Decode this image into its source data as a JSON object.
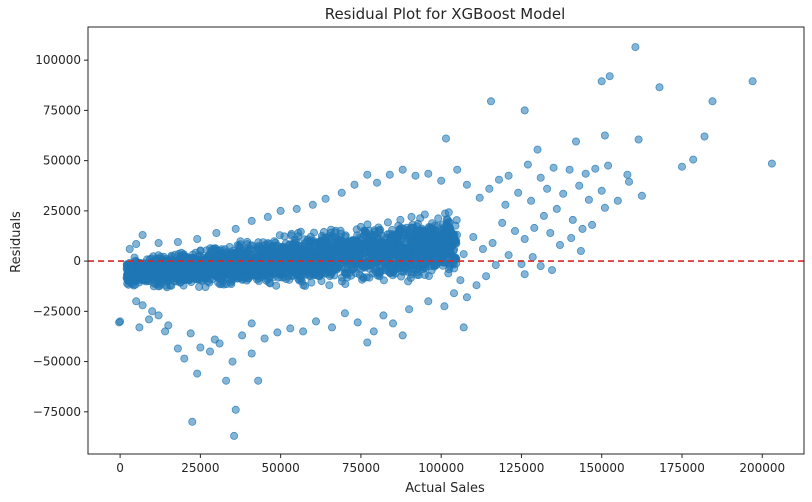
{
  "chart_data": {
    "type": "scatter",
    "title": "Residual Plot for XGBoost Model",
    "xlabel": "Actual Sales",
    "ylabel": "Residuals",
    "xlim": [
      -10000,
      213000
    ],
    "ylim": [
      -96000,
      116500
    ],
    "xticks": [
      0,
      25000,
      50000,
      75000,
      100000,
      125000,
      150000,
      175000,
      200000
    ],
    "yticks": [
      -75000,
      -50000,
      -25000,
      0,
      25000,
      50000,
      75000,
      100000
    ],
    "reference_line": {
      "y": 0,
      "style": "dashed",
      "color": "#d62728"
    },
    "point_color": "#1f77b4",
    "point_alpha": 0.55,
    "grid": false,
    "legend": "none",
    "dense_band": {
      "description": "main cloud of residuals for actual sales 2000-105000",
      "x_range": [
        2000,
        105000
      ],
      "center_trend": [
        [
          2000,
          -6000
        ],
        [
          25000,
          -3500
        ],
        [
          50000,
          0
        ],
        [
          75000,
          4000
        ],
        [
          100000,
          8000
        ]
      ],
      "half_width_trend": [
        [
          2000,
          9000
        ],
        [
          50000,
          15000
        ],
        [
          100000,
          20000
        ]
      ],
      "approx_point_count": 2600
    },
    "points": [
      [
        160500,
        106500
      ],
      [
        152500,
        92000
      ],
      [
        150000,
        89500
      ],
      [
        197000,
        89500
      ],
      [
        168000,
        86500
      ],
      [
        115500,
        79500
      ],
      [
        184500,
        79500
      ],
      [
        126000,
        75000
      ],
      [
        182000,
        62000
      ],
      [
        101500,
        61000
      ],
      [
        151000,
        62500
      ],
      [
        142000,
        59500
      ],
      [
        161500,
        60500
      ],
      [
        130000,
        55500
      ],
      [
        178500,
        50500
      ],
      [
        203000,
        48500
      ],
      [
        175000,
        47000
      ],
      [
        158000,
        43000
      ],
      [
        158500,
        39500
      ],
      [
        152000,
        47500
      ],
      [
        148000,
        46000
      ],
      [
        145000,
        43500
      ],
      [
        135000,
        46500
      ],
      [
        140000,
        45500
      ],
      [
        131000,
        41500
      ],
      [
        127000,
        48000
      ],
      [
        121000,
        42500
      ],
      [
        118000,
        40500
      ],
      [
        133000,
        36000
      ],
      [
        138000,
        33500
      ],
      [
        143000,
        37500
      ],
      [
        146000,
        30500
      ],
      [
        150000,
        35000
      ],
      [
        155000,
        30000
      ],
      [
        162500,
        32500
      ],
      [
        128000,
        30000
      ],
      [
        124000,
        34000
      ],
      [
        120000,
        28000
      ],
      [
        115000,
        36000
      ],
      [
        112000,
        31500
      ],
      [
        108000,
        38000
      ],
      [
        105000,
        45500
      ],
      [
        132000,
        22500
      ],
      [
        136000,
        26000
      ],
      [
        141000,
        20500
      ],
      [
        144000,
        16000
      ],
      [
        147000,
        18000
      ],
      [
        151000,
        26500
      ],
      [
        119000,
        19000
      ],
      [
        123000,
        15000
      ],
      [
        126000,
        11000
      ],
      [
        129000,
        16500
      ],
      [
        134000,
        14000
      ],
      [
        137000,
        8000
      ],
      [
        140500,
        11500
      ],
      [
        143500,
        5000
      ],
      [
        116000,
        9000
      ],
      [
        113000,
        6000
      ],
      [
        110000,
        12000
      ],
      [
        107000,
        3500
      ],
      [
        121000,
        3000
      ],
      [
        125000,
        -1500
      ],
      [
        128500,
        2000
      ],
      [
        131000,
        -2500
      ],
      [
        134500,
        -4500
      ],
      [
        126000,
        -6500
      ],
      [
        117000,
        -2000
      ],
      [
        114000,
        -7500
      ],
      [
        111000,
        -12000
      ],
      [
        108000,
        -18000
      ],
      [
        106000,
        -9500
      ],
      [
        104000,
        -16000
      ],
      [
        101000,
        -22500
      ],
      [
        107000,
        -33000
      ],
      [
        96000,
        -20000
      ],
      [
        90000,
        -24000
      ],
      [
        88000,
        -37000
      ],
      [
        85000,
        -31000
      ],
      [
        82000,
        -27000
      ],
      [
        79000,
        -35000
      ],
      [
        77000,
        -40500
      ],
      [
        74000,
        -30500
      ],
      [
        70000,
        -26000
      ],
      [
        66000,
        -33000
      ],
      [
        61000,
        -30000
      ],
      [
        57000,
        -35000
      ],
      [
        53000,
        -33500
      ],
      [
        49000,
        -35500
      ],
      [
        45000,
        -38500
      ],
      [
        41000,
        -31000
      ],
      [
        38000,
        -37000
      ],
      [
        35000,
        -50000
      ],
      [
        31000,
        -41000
      ],
      [
        28000,
        -45000
      ],
      [
        25000,
        -43000
      ],
      [
        22000,
        -36000
      ],
      [
        20000,
        -48500
      ],
      [
        18000,
        -43500
      ],
      [
        15000,
        -32000
      ],
      [
        12000,
        -27000
      ],
      [
        10000,
        -25000
      ],
      [
        7000,
        -22000
      ],
      [
        5000,
        -20000
      ],
      [
        6000,
        -33000
      ],
      [
        3000,
        -10000
      ],
      [
        0,
        -30000
      ],
      [
        -300,
        -30500
      ],
      [
        33000,
        -59500
      ],
      [
        43000,
        -59500
      ],
      [
        24000,
        -56000
      ],
      [
        22500,
        -80000
      ],
      [
        36000,
        -74000
      ],
      [
        35500,
        -87000
      ],
      [
        41000,
        -46000
      ],
      [
        29500,
        -39000
      ],
      [
        100000,
        40000
      ],
      [
        96000,
        43500
      ],
      [
        92000,
        42500
      ],
      [
        88000,
        45500
      ],
      [
        84000,
        43000
      ],
      [
        80000,
        39000
      ],
      [
        77000,
        43000
      ],
      [
        73000,
        38000
      ],
      [
        69000,
        34000
      ],
      [
        64000,
        31000
      ],
      [
        60000,
        28000
      ],
      [
        55000,
        26000
      ],
      [
        50000,
        25000
      ],
      [
        46000,
        22000
      ],
      [
        41000,
        20000
      ],
      [
        36000,
        16000
      ],
      [
        30000,
        14000
      ],
      [
        24000,
        11000
      ],
      [
        18000,
        9500
      ],
      [
        12000,
        9000
      ],
      [
        7000,
        13000
      ],
      [
        5000,
        8500
      ],
      [
        3000,
        6000
      ],
      [
        9000,
        -29000
      ],
      [
        14000,
        -35000
      ]
    ]
  }
}
